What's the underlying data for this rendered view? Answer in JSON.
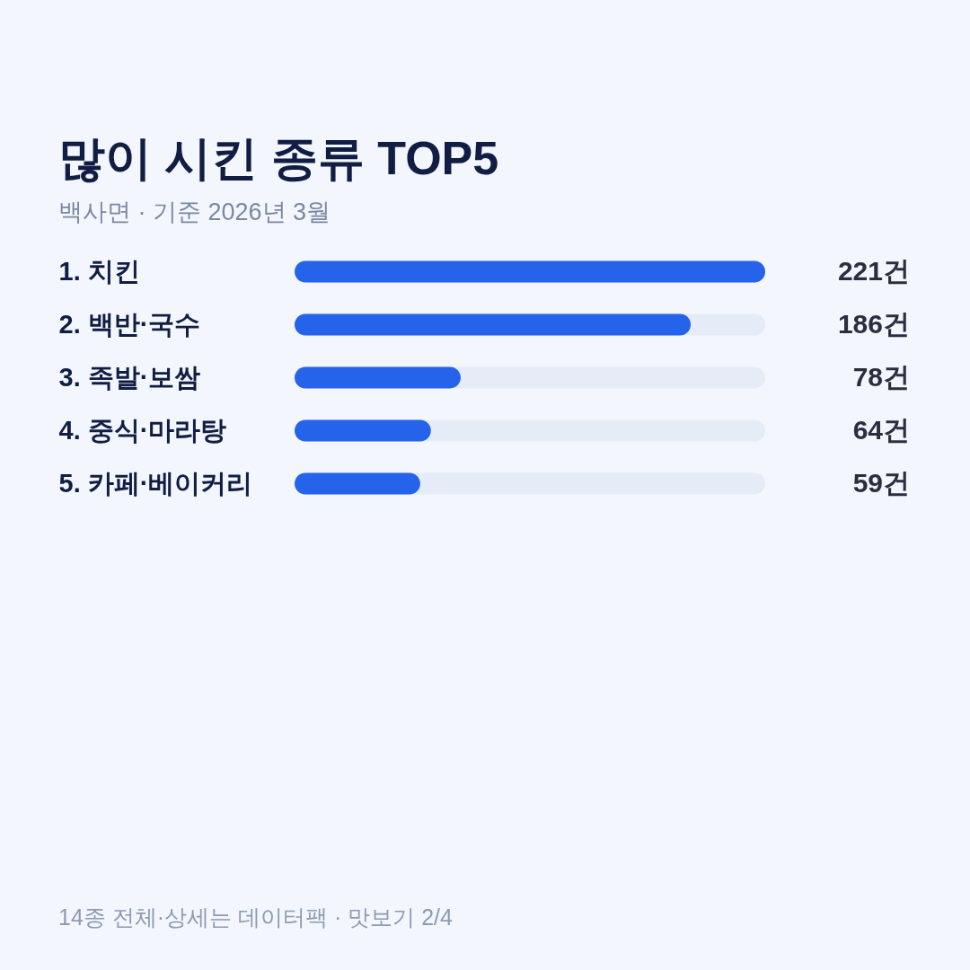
{
  "chart_data": {
    "type": "bar",
    "orientation": "horizontal",
    "title": "많이 시킨 종류 TOP5",
    "subtitle": "백사면 · 기준 2026년 3월",
    "categories": [
      "1. 치킨",
      "2. 백반·국수",
      "3. 족발·보쌈",
      "4. 중식·마라탕",
      "5. 카페·베이커리"
    ],
    "values": [
      221,
      186,
      78,
      64,
      59
    ],
    "value_labels": [
      "221건",
      "186건",
      "78건",
      "64건",
      "59건"
    ],
    "color": "#2563eb",
    "xlim": [
      0,
      221
    ],
    "tick_labels": "y",
    "annotations": [
      "14종 전체·상세는 데이터팩 · 맛보기 2/4"
    ]
  }
}
